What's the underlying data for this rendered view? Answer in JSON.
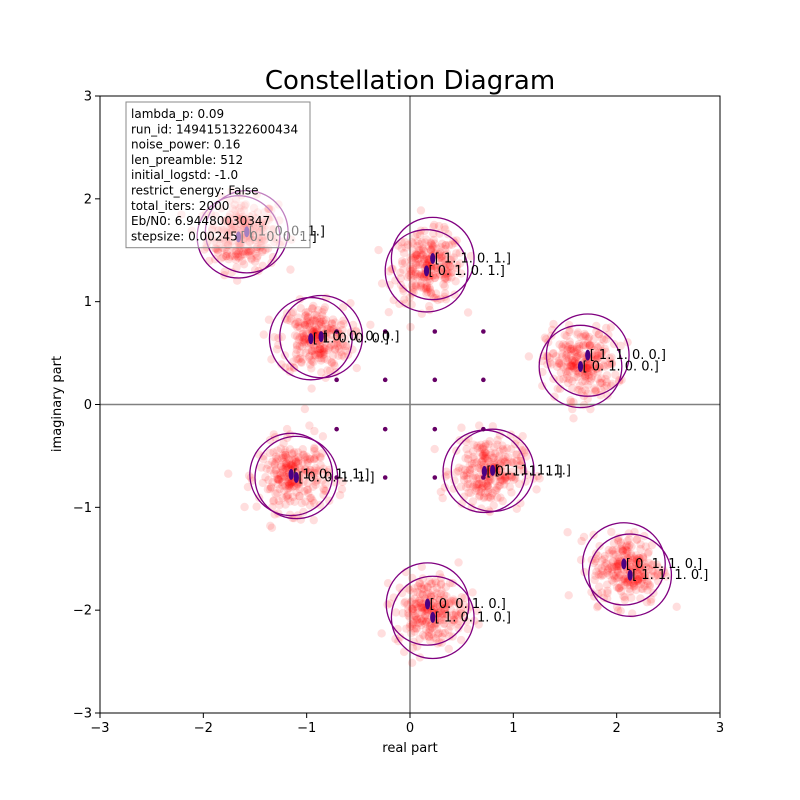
{
  "chart_data": {
    "type": "scatter",
    "title": "Constellation Diagram",
    "xlabel": "real part",
    "ylabel": "imaginary part",
    "xlim": [
      -3,
      3
    ],
    "ylim": [
      -3,
      3
    ],
    "xticks": [
      -3,
      -2,
      -1,
      0,
      1,
      2,
      3
    ],
    "yticks": [
      -3,
      -2,
      -1,
      0,
      1,
      2,
      3
    ],
    "xtick_labels": [
      "−3",
      "−2",
      "−1",
      "0",
      "1",
      "2",
      "3"
    ],
    "ytick_labels": [
      "−3",
      "−2",
      "−1",
      "0",
      "1",
      "2",
      "3"
    ],
    "grid": false,
    "axis_lines_at_zero": true,
    "colors": {
      "noise": "#ff0000",
      "circle": "#800080",
      "centroid": "#4b0082",
      "reference": "#660066",
      "axis_line": "#808080"
    },
    "info_box": {
      "placement": "top-left",
      "lines": [
        "lambda_p: 0.09",
        "run_id: 1494151322600434",
        "noise_power: 0.16",
        "len_preamble: 512",
        "initial_logstd: -1.0",
        "restrict_energy: False",
        "total_iters: 2000",
        "Eb/N0: 6.94480030347",
        "stepsize: 0.00245"
      ]
    },
    "clusters": [
      {
        "center": [
          -1.62,
          1.65
        ],
        "radius": 0.4,
        "points": [
          {
            "x": -1.58,
            "y": 1.68,
            "label": "[ 1.  0.  0.  1.]"
          },
          {
            "x": -1.66,
            "y": 1.63,
            "label": "[ 0.  0.  0.  1.]"
          }
        ]
      },
      {
        "center": [
          0.18,
          1.33
        ],
        "radius": 0.4,
        "points": [
          {
            "x": 0.22,
            "y": 1.42,
            "label": "[ 1.  1.  0.  1.]"
          },
          {
            "x": 0.16,
            "y": 1.3,
            "label": "[ 0.  1.  0.  1.]"
          }
        ]
      },
      {
        "center": [
          -0.92,
          0.64
        ],
        "radius": 0.4,
        "points": [
          {
            "x": -0.96,
            "y": 0.64,
            "label": "[ 1.  0.  0.  0.]"
          },
          {
            "x": -0.86,
            "y": 0.66,
            "label": "[ 0.  0.  0.  0.]"
          }
        ]
      },
      {
        "center": [
          1.66,
          0.4
        ],
        "radius": 0.4,
        "points": [
          {
            "x": 1.72,
            "y": 0.48,
            "label": "[ 1.  1.  0.  0.]"
          },
          {
            "x": 1.65,
            "y": 0.37,
            "label": "[ 0.  1.  0.  0.]"
          }
        ]
      },
      {
        "center": [
          -1.12,
          -0.7
        ],
        "radius": 0.4,
        "points": [
          {
            "x": -1.15,
            "y": -0.68,
            "label": "[ 1.  0.  1.  1.]"
          },
          {
            "x": -1.1,
            "y": -0.71,
            "label": "[ 0.  0.  1.  1.]"
          }
        ]
      },
      {
        "center": [
          0.75,
          -0.65
        ],
        "radius": 0.4,
        "points": [
          {
            "x": 0.72,
            "y": -0.65,
            "label": "[ 0.  1.  1.  1.]"
          },
          {
            "x": 0.8,
            "y": -0.64,
            "label": "[ 1.  1.  1.  1.]"
          }
        ]
      },
      {
        "center": [
          2.1,
          -1.6
        ],
        "radius": 0.4,
        "points": [
          {
            "x": 2.07,
            "y": -1.55,
            "label": "[ 0.  1.  1.  0.]"
          },
          {
            "x": 2.13,
            "y": -1.66,
            "label": "[ 1.  1.  1.  0.]"
          }
        ]
      },
      {
        "center": [
          0.2,
          -2.0
        ],
        "radius": 0.4,
        "points": [
          {
            "x": 0.17,
            "y": -1.94,
            "label": "[ 0.  0.  1.  0.]"
          },
          {
            "x": 0.22,
            "y": -2.07,
            "label": "[ 1.  0.  1.  0.]"
          }
        ]
      }
    ],
    "reference_points": [
      {
        "x": -0.71,
        "y": 0.71
      },
      {
        "x": -0.24,
        "y": 0.71
      },
      {
        "x": 0.24,
        "y": 0.71
      },
      {
        "x": 0.71,
        "y": 0.71
      },
      {
        "x": -0.71,
        "y": 0.24
      },
      {
        "x": -0.24,
        "y": 0.24
      },
      {
        "x": 0.24,
        "y": 0.24
      },
      {
        "x": 0.71,
        "y": 0.24
      },
      {
        "x": -0.71,
        "y": -0.24
      },
      {
        "x": -0.24,
        "y": -0.24
      },
      {
        "x": 0.24,
        "y": -0.24
      },
      {
        "x": 0.71,
        "y": -0.24
      },
      {
        "x": -0.71,
        "y": -0.71
      },
      {
        "x": -0.24,
        "y": -0.71
      },
      {
        "x": 0.24,
        "y": -0.71
      },
      {
        "x": 0.71,
        "y": -0.71
      }
    ]
  }
}
